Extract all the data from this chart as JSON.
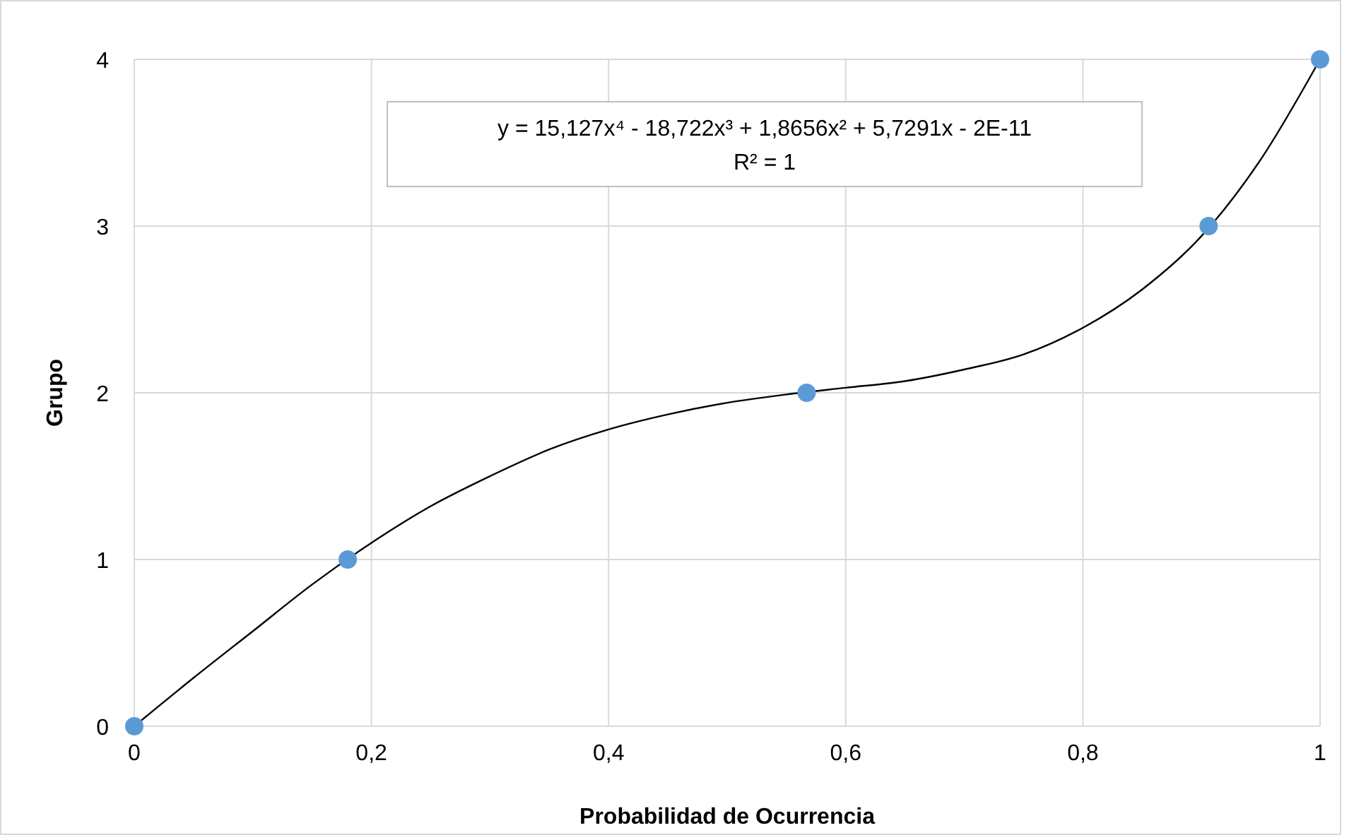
{
  "chart_data": {
    "type": "scatter",
    "xlabel": "Probabilidad de Ocurrencia",
    "ylabel": "Grupo",
    "xlim": [
      0,
      1
    ],
    "ylim": [
      0,
      4
    ],
    "xticks": [
      0,
      {
        "value": 0.2,
        "label": "0,2"
      },
      {
        "value": 0.4,
        "label": "0,4"
      },
      {
        "value": 0.6,
        "label": "0,6"
      },
      {
        "value": 0.8,
        "label": "0,8"
      },
      1
    ],
    "yticks": [
      0,
      1,
      2,
      3,
      4
    ],
    "grid": true,
    "annotations": [
      "y = 15,127x⁴ - 18,722x³ + 1,8656x² + 5,7291x - 2E-11",
      "R² = 1"
    ],
    "series": [
      {
        "type": "line",
        "color": "#000000",
        "x": [
          0,
          0.05,
          0.1,
          0.15,
          0.2,
          0.25,
          0.3,
          0.35,
          0.4,
          0.45,
          0.5,
          0.55,
          0.6,
          0.65,
          0.7,
          0.75,
          0.8,
          0.85,
          0.9,
          0.95,
          1
        ],
        "values": [
          0,
          0.29,
          0.57,
          0.85,
          1.1,
          1.32,
          1.5,
          1.66,
          1.78,
          1.87,
          1.94,
          1.99,
          2.03,
          2.07,
          2.14,
          2.23,
          2.39,
          2.62,
          2.94,
          3.4,
          4
        ]
      },
      {
        "color": "#5b9bd5",
        "marker": "circle",
        "x": [
          0,
          0.18,
          0.567,
          0.906,
          1
        ],
        "values": [
          0,
          1,
          2,
          3,
          4
        ]
      }
    ]
  }
}
